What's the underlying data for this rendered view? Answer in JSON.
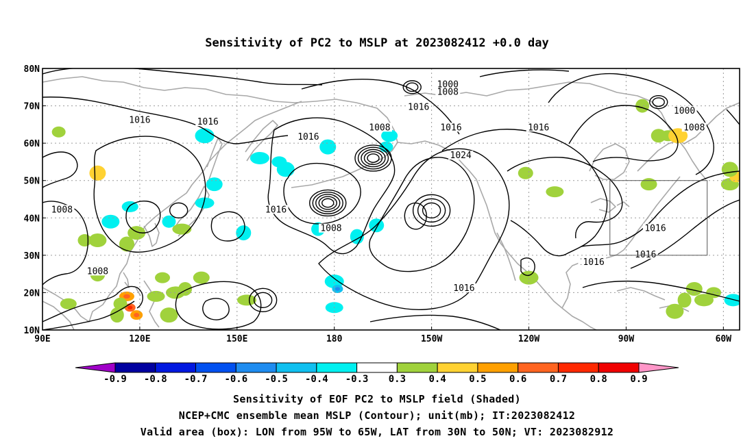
{
  "title": "Sensitivity of PC2 to MSLP at 2023082412 +0.0 day",
  "map": {
    "lon_range": [
      90,
      305
    ],
    "lat_range": [
      10,
      80
    ],
    "lon_ticks": [
      {
        "lon": 90,
        "label": "90E"
      },
      {
        "lon": 120,
        "label": "120E"
      },
      {
        "lon": 150,
        "label": "150E"
      },
      {
        "lon": 180,
        "label": "180"
      },
      {
        "lon": 210,
        "label": "150W"
      },
      {
        "lon": 240,
        "label": "120W"
      },
      {
        "lon": 270,
        "label": "90W"
      },
      {
        "lon": 300,
        "label": "60W"
      }
    ],
    "lat_ticks": [
      {
        "lat": 80,
        "label": "80N"
      },
      {
        "lat": 70,
        "label": "70N"
      },
      {
        "lat": 60,
        "label": "60N"
      },
      {
        "lat": 50,
        "label": "50N"
      },
      {
        "lat": 40,
        "label": "40N"
      },
      {
        "lat": 30,
        "label": "30N"
      },
      {
        "lat": 20,
        "label": "20N"
      },
      {
        "lat": 10,
        "label": "10N"
      }
    ],
    "grid": "dotted",
    "valid_box": {
      "lon_min": 265,
      "lon_max": 295,
      "lat_min": 30,
      "lat_max": 50
    },
    "contour_labels": [
      {
        "text": "1000",
        "lon": 215,
        "lat": 75.5
      },
      {
        "text": "1008",
        "lon": 215,
        "lat": 73.5
      },
      {
        "text": "1016",
        "lon": 206,
        "lat": 69.5
      },
      {
        "text": "1000",
        "lon": 288,
        "lat": 68.5
      },
      {
        "text": "1008",
        "lon": 291,
        "lat": 64
      },
      {
        "text": "1016",
        "lon": 120,
        "lat": 66
      },
      {
        "text": "1016",
        "lon": 141,
        "lat": 65.5
      },
      {
        "text": "1016",
        "lon": 172,
        "lat": 61.5
      },
      {
        "text": "1008",
        "lon": 194,
        "lat": 64
      },
      {
        "text": "1016",
        "lon": 216,
        "lat": 64
      },
      {
        "text": "1016",
        "lon": 243,
        "lat": 64
      },
      {
        "text": "1024",
        "lon": 219,
        "lat": 56.5
      },
      {
        "text": "1016",
        "lon": 162,
        "lat": 42
      },
      {
        "text": "1008",
        "lon": 96,
        "lat": 42
      },
      {
        "text": "1008",
        "lon": 179,
        "lat": 37
      },
      {
        "text": "1008",
        "lon": 107,
        "lat": 25.5
      },
      {
        "text": "1016",
        "lon": 220,
        "lat": 21
      },
      {
        "text": "1016",
        "lon": 259,
        "lat": 28
      },
      {
        "text": "1016",
        "lon": 279,
        "lat": 37
      },
      {
        "text": "1016",
        "lon": 276,
        "lat": 30
      },
      {
        "text": "1016",
        "lon": 260,
        "lat": 28
      }
    ],
    "centers": {
      "lows": [
        {
          "lon": 178,
          "lat": 44,
          "rings": 5
        },
        {
          "lon": 192,
          "lat": 56,
          "rings": 5
        },
        {
          "lon": 280,
          "lat": 71,
          "rings": 2
        },
        {
          "lon": 204,
          "lat": 75,
          "rings": 2
        }
      ],
      "highs": [
        {
          "lon": 210,
          "lat": 42,
          "rings": 3
        },
        {
          "lon": 132,
          "lat": 42,
          "rings": 1
        },
        {
          "lon": 158,
          "lat": 18,
          "rings": 2
        }
      ]
    },
    "shaded_patches": [
      {
        "lon": 196,
        "lat": 59,
        "value": -0.4
      },
      {
        "lon": 178,
        "lat": 59,
        "value": -0.4
      },
      {
        "lon": 180,
        "lat": 23,
        "value": -0.4
      },
      {
        "lon": 181,
        "lat": 21,
        "value": -0.5
      },
      {
        "lon": 180,
        "lat": 16,
        "value": -0.4
      },
      {
        "lon": 187,
        "lat": 35,
        "value": -0.4
      },
      {
        "lon": 143,
        "lat": 49,
        "value": -0.4
      },
      {
        "lon": 157,
        "lat": 56,
        "value": -0.4
      },
      {
        "lon": 163,
        "lat": 55,
        "value": -0.4
      },
      {
        "lon": 165,
        "lat": 53,
        "value": -0.4
      },
      {
        "lon": 175,
        "lat": 37,
        "value": -0.4
      },
      {
        "lon": 197,
        "lat": 62,
        "value": -0.4
      },
      {
        "lon": 140,
        "lat": 44,
        "value": -0.4
      },
      {
        "lon": 152,
        "lat": 36,
        "value": -0.4
      },
      {
        "lon": 111,
        "lat": 39,
        "value": -0.4
      },
      {
        "lon": 129,
        "lat": 39,
        "value": -0.4
      },
      {
        "lon": 117,
        "lat": 43,
        "value": -0.4
      },
      {
        "lon": 140,
        "lat": 62,
        "value": -0.4
      },
      {
        "lon": 193,
        "lat": 38,
        "value": -0.4
      },
      {
        "lon": 303,
        "lat": 18,
        "value": -0.4
      },
      {
        "lon": 95,
        "lat": 63,
        "value": 0.3
      },
      {
        "lon": 107,
        "lat": 52,
        "value": 0.4
      },
      {
        "lon": 116,
        "lat": 19,
        "value": 0.5
      },
      {
        "lon": 117,
        "lat": 16,
        "value": 0.6
      },
      {
        "lon": 125,
        "lat": 19,
        "value": 0.3
      },
      {
        "lon": 113,
        "lat": 14,
        "value": 0.3
      },
      {
        "lon": 119,
        "lat": 14,
        "value": 0.5
      },
      {
        "lon": 131,
        "lat": 20,
        "value": 0.3
      },
      {
        "lon": 127,
        "lat": 24,
        "value": 0.3
      },
      {
        "lon": 129,
        "lat": 14,
        "value": 0.3
      },
      {
        "lon": 134,
        "lat": 21,
        "value": 0.3
      },
      {
        "lon": 139,
        "lat": 24,
        "value": 0.3
      },
      {
        "lon": 153,
        "lat": 18,
        "value": 0.3
      },
      {
        "lon": 107,
        "lat": 25,
        "value": 0.3
      },
      {
        "lon": 107,
        "lat": 34,
        "value": 0.3
      },
      {
        "lon": 103,
        "lat": 34,
        "value": 0.3
      },
      {
        "lon": 283,
        "lat": 62,
        "value": 0.3
      },
      {
        "lon": 286,
        "lat": 62,
        "value": 0.4
      },
      {
        "lon": 280,
        "lat": 62,
        "value": 0.3
      },
      {
        "lon": 302,
        "lat": 49,
        "value": 0.3
      },
      {
        "lon": 304,
        "lat": 51,
        "value": 0.4
      },
      {
        "lon": 302,
        "lat": 53,
        "value": 0.3
      },
      {
        "lon": 240,
        "lat": 24,
        "value": 0.3
      },
      {
        "lon": 239,
        "lat": 52,
        "value": 0.3
      },
      {
        "lon": 248,
        "lat": 47,
        "value": 0.3
      },
      {
        "lon": 288,
        "lat": 18,
        "value": 0.3
      },
      {
        "lon": 291,
        "lat": 21,
        "value": 0.3
      },
      {
        "lon": 294,
        "lat": 18,
        "value": 0.3
      },
      {
        "lon": 297,
        "lat": 20,
        "value": 0.3
      },
      {
        "lon": 285,
        "lat": 15,
        "value": 0.3
      },
      {
        "lon": 275,
        "lat": 70,
        "value": 0.3
      },
      {
        "lon": 277,
        "lat": 49,
        "value": 0.3
      },
      {
        "lon": 133,
        "lat": 37,
        "value": 0.3
      },
      {
        "lon": 116,
        "lat": 33,
        "value": 0.3
      },
      {
        "lon": 119,
        "lat": 36,
        "value": 0.3
      },
      {
        "lon": 114,
        "lat": 17,
        "value": 0.3
      },
      {
        "lon": 98,
        "lat": 17,
        "value": 0.3
      }
    ]
  },
  "colorbar": {
    "levels": [
      "-0.9",
      "-0.8",
      "-0.7",
      "-0.6",
      "-0.5",
      "-0.4",
      "-0.3",
      "0.3",
      "0.4",
      "0.5",
      "0.6",
      "0.7",
      "0.8",
      "0.9"
    ],
    "colors": [
      "#a000c8",
      "#0000a0",
      "#0018e0",
      "#0050f0",
      "#1e8cf0",
      "#10c0f0",
      "#00f0f0",
      "#ffffff",
      "#a0d23c",
      "#ffd232",
      "#ffa000",
      "#ff6420",
      "#ff2800",
      "#f00000",
      "#ff96c8"
    ]
  },
  "captions": [
    "Sensitivity of EOF PC2 to MSLP field (Shaded)",
    "NCEP+CMC ensemble mean MSLP (Contour); unit(mb); IT:2023082412",
    "Valid area (box): LON from 95W to 65W, LAT from 30N to 50N; VT: 2023082912"
  ]
}
